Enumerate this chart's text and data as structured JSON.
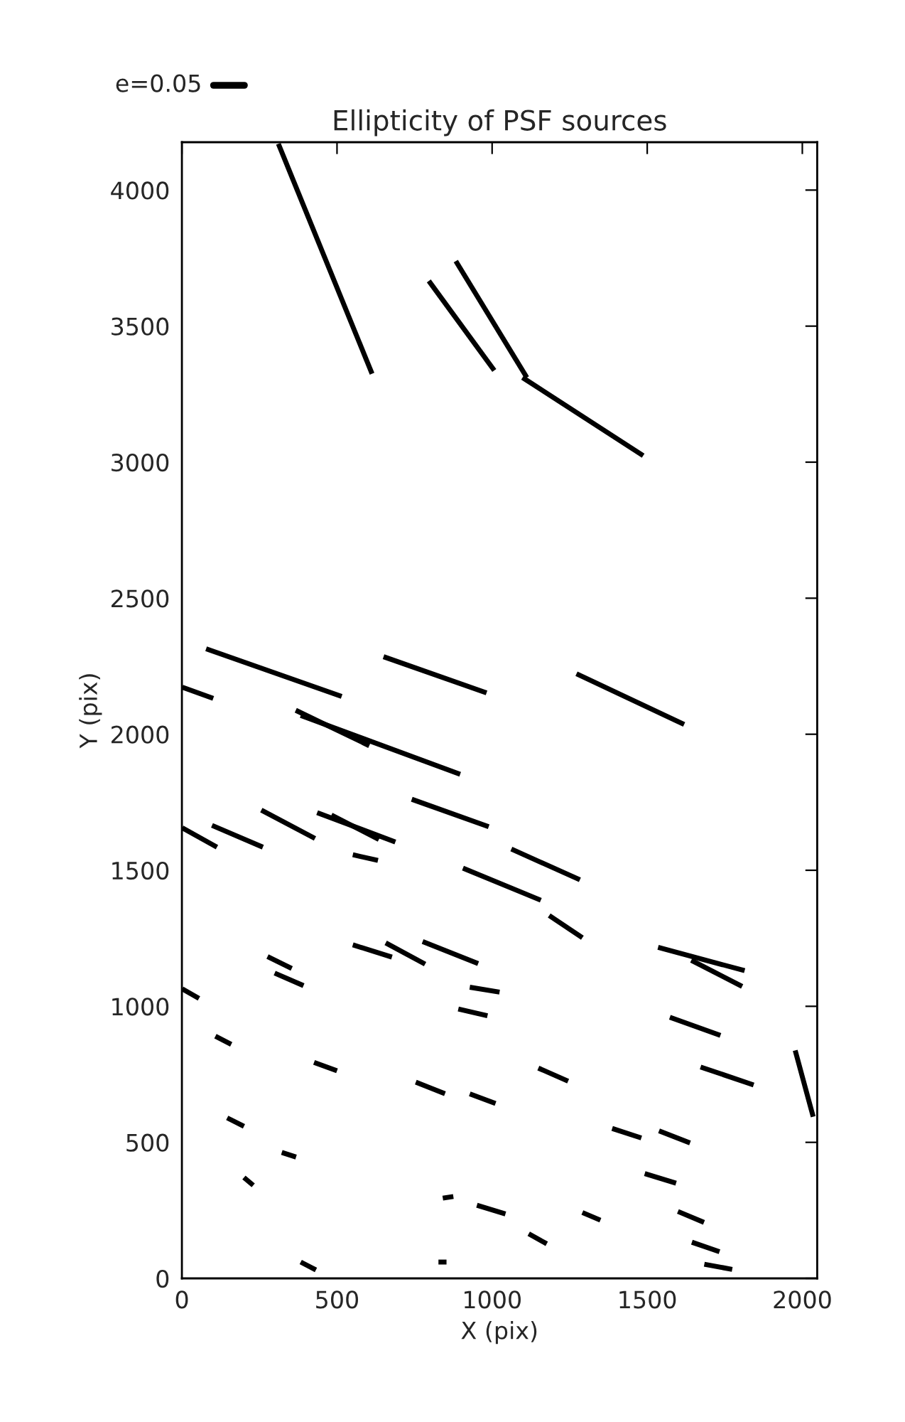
{
  "chart_data": {
    "type": "line",
    "title": "Ellipticity of PSF sources",
    "xlabel": "X (pix)",
    "ylabel": "Y (pix)",
    "annotations": [
      "e=0.05"
    ],
    "xlim": [
      0,
      2048
    ],
    "ylim": [
      0,
      4176
    ],
    "xticks": [
      0,
      500,
      1000,
      1500,
      2000
    ],
    "yticks": [
      0,
      500,
      1000,
      1500,
      2000,
      2500,
      3000,
      3500,
      4000
    ],
    "grid": false,
    "line_style": "solid",
    "marker": "none",
    "series": [
      {
        "color": "#000000",
        "x": [
          311,
          613
        ],
        "values": [
          4170,
          3325
        ]
      },
      {
        "color": "#000000",
        "x": [
          796,
          1007
        ],
        "values": [
          3666,
          3337
        ]
      },
      {
        "color": "#000000",
        "x": [
          883,
          1112
        ],
        "values": [
          3739,
          3311
        ]
      },
      {
        "color": "#000000",
        "x": [
          1098,
          1487
        ],
        "values": [
          3311,
          3024
        ]
      },
      {
        "color": "#000000",
        "x": [
          78,
          515
        ],
        "values": [
          2314,
          2139
        ]
      },
      {
        "color": "#000000",
        "x": [
          650,
          982
        ],
        "values": [
          2285,
          2152
        ]
      },
      {
        "color": "#000000",
        "x": [
          1,
          101
        ],
        "values": [
          2173,
          2132
        ]
      },
      {
        "color": "#000000",
        "x": [
          367,
          604
        ],
        "values": [
          2088,
          1958
        ]
      },
      {
        "color": "#000000",
        "x": [
          383,
          897
        ],
        "values": [
          2069,
          1853
        ]
      },
      {
        "color": "#000000",
        "x": [
          1272,
          1619
        ],
        "values": [
          2222,
          2036
        ]
      },
      {
        "color": "#000000",
        "x": [
          741,
          989
        ],
        "values": [
          1761,
          1660
        ]
      },
      {
        "color": "#000000",
        "x": [
          1,
          113
        ],
        "values": [
          1656,
          1585
        ]
      },
      {
        "color": "#000000",
        "x": [
          97,
          261
        ],
        "values": [
          1665,
          1585
        ]
      },
      {
        "color": "#000000",
        "x": [
          256,
          429
        ],
        "values": [
          1721,
          1617
        ]
      },
      {
        "color": "#000000",
        "x": [
          436,
          688
        ],
        "values": [
          1712,
          1604
        ]
      },
      {
        "color": "#000000",
        "x": [
          482,
          635
        ],
        "values": [
          1703,
          1613
        ]
      },
      {
        "color": "#000000",
        "x": [
          551,
          632
        ],
        "values": [
          1557,
          1536
        ]
      },
      {
        "color": "#000000",
        "x": [
          906,
          1157
        ],
        "values": [
          1508,
          1390
        ]
      },
      {
        "color": "#000000",
        "x": [
          1062,
          1283
        ],
        "values": [
          1578,
          1465
        ]
      },
      {
        "color": "#000000",
        "x": [
          1184,
          1291
        ],
        "values": [
          1334,
          1252
        ]
      },
      {
        "color": "#000000",
        "x": [
          1535,
          1814
        ],
        "values": [
          1217,
          1131
        ]
      },
      {
        "color": "#000000",
        "x": [
          1642,
          1806
        ],
        "values": [
          1169,
          1073
        ]
      },
      {
        "color": "#000000",
        "x": [
          551,
          677
        ],
        "values": [
          1226,
          1181
        ]
      },
      {
        "color": "#000000",
        "x": [
          657,
          784
        ],
        "values": [
          1233,
          1155
        ]
      },
      {
        "color": "#000000",
        "x": [
          776,
          955
        ],
        "values": [
          1238,
          1157
        ]
      },
      {
        "color": "#000000",
        "x": [
          1,
          55
        ],
        "values": [
          1064,
          1029
        ]
      },
      {
        "color": "#000000",
        "x": [
          276,
          354
        ],
        "values": [
          1183,
          1139
        ]
      },
      {
        "color": "#000000",
        "x": [
          299,
          392
        ],
        "values": [
          1122,
          1076
        ]
      },
      {
        "color": "#000000",
        "x": [
          928,
          1024
        ],
        "values": [
          1070,
          1052
        ]
      },
      {
        "color": "#000000",
        "x": [
          891,
          985
        ],
        "values": [
          990,
          965
        ]
      },
      {
        "color": "#000000",
        "x": [
          1573,
          1736
        ],
        "values": [
          960,
          893
        ]
      },
      {
        "color": "#000000",
        "x": [
          1672,
          1843
        ],
        "values": [
          777,
          711
        ]
      },
      {
        "color": "#000000",
        "x": [
          1977,
          2035
        ],
        "values": [
          838,
          594
        ]
      },
      {
        "color": "#000000",
        "x": [
          108,
          159
        ],
        "values": [
          890,
          860
        ]
      },
      {
        "color": "#000000",
        "x": [
          426,
          500
        ],
        "values": [
          794,
          763
        ]
      },
      {
        "color": "#000000",
        "x": [
          754,
          848
        ],
        "values": [
          721,
          679
        ]
      },
      {
        "color": "#000000",
        "x": [
          928,
          1011
        ],
        "values": [
          678,
          643
        ]
      },
      {
        "color": "#000000",
        "x": [
          1149,
          1245
        ],
        "values": [
          773,
          725
        ]
      },
      {
        "color": "#000000",
        "x": [
          146,
          200
        ],
        "values": [
          590,
          559
        ]
      },
      {
        "color": "#000000",
        "x": [
          322,
          368
        ],
        "values": [
          463,
          446
        ]
      },
      {
        "color": "#000000",
        "x": [
          200,
          230
        ],
        "values": [
          371,
          342
        ]
      },
      {
        "color": "#000000",
        "x": [
          383,
          432
        ],
        "values": [
          60,
          31
        ]
      },
      {
        "color": "#000000",
        "x": [
          841,
          875
        ],
        "values": [
          295,
          301
        ]
      },
      {
        "color": "#000000",
        "x": [
          827,
          853
        ],
        "values": [
          60,
          60
        ]
      },
      {
        "color": "#000000",
        "x": [
          951,
          1043
        ],
        "values": [
          269,
          237
        ]
      },
      {
        "color": "#000000",
        "x": [
          1118,
          1176
        ],
        "values": [
          164,
          127
        ]
      },
      {
        "color": "#000000",
        "x": [
          1291,
          1349
        ],
        "values": [
          242,
          214
        ]
      },
      {
        "color": "#000000",
        "x": [
          1387,
          1481
        ],
        "values": [
          551,
          516
        ]
      },
      {
        "color": "#000000",
        "x": [
          1538,
          1638
        ],
        "values": [
          542,
          498
        ]
      },
      {
        "color": "#000000",
        "x": [
          1492,
          1593
        ],
        "values": [
          385,
          350
        ]
      },
      {
        "color": "#000000",
        "x": [
          1599,
          1683
        ],
        "values": [
          246,
          206
        ]
      },
      {
        "color": "#000000",
        "x": [
          1644,
          1733
        ],
        "values": [
          133,
          98
        ]
      },
      {
        "color": "#000000",
        "x": [
          1684,
          1774
        ],
        "values": [
          52,
          33
        ]
      }
    ]
  }
}
